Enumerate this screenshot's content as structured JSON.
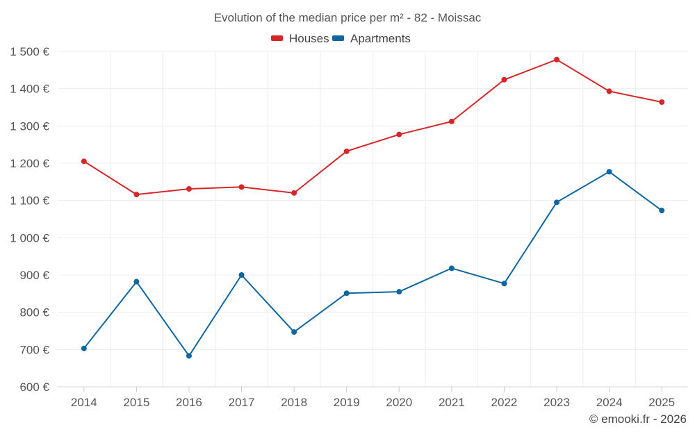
{
  "chart_data": {
    "type": "line",
    "title": "Evolution of the median price per m² - 82 - Moissac",
    "categories": [
      "2014",
      "2015",
      "2016",
      "2017",
      "2018",
      "2019",
      "2020",
      "2021",
      "2022",
      "2023",
      "2024",
      "2025"
    ],
    "series": [
      {
        "name": "Houses",
        "color": "#d62728",
        "values": [
          1205,
          1116,
          1131,
          1136,
          1120,
          1232,
          1277,
          1312,
          1424,
          1478,
          1393,
          1364
        ]
      },
      {
        "name": "Apartments",
        "color": "#0e66a0",
        "values": [
          703,
          882,
          683,
          900,
          747,
          851,
          855,
          918,
          877,
          1095,
          1177,
          1073
        ]
      }
    ],
    "ylim": [
      600,
      1500
    ],
    "yticks": [
      600,
      700,
      800,
      900,
      1000,
      1100,
      1200,
      1300,
      1400,
      1500
    ],
    "ytick_labels": [
      "600 €",
      "700 €",
      "800 €",
      "900 €",
      "1 000 €",
      "1 100 €",
      "1 200 €",
      "1 300 €",
      "1 400 €",
      "1 500 €"
    ],
    "xlabel": "",
    "ylabel": "",
    "legend": "top-center",
    "grid": true
  },
  "credit": "© emooki.fr - 2026"
}
